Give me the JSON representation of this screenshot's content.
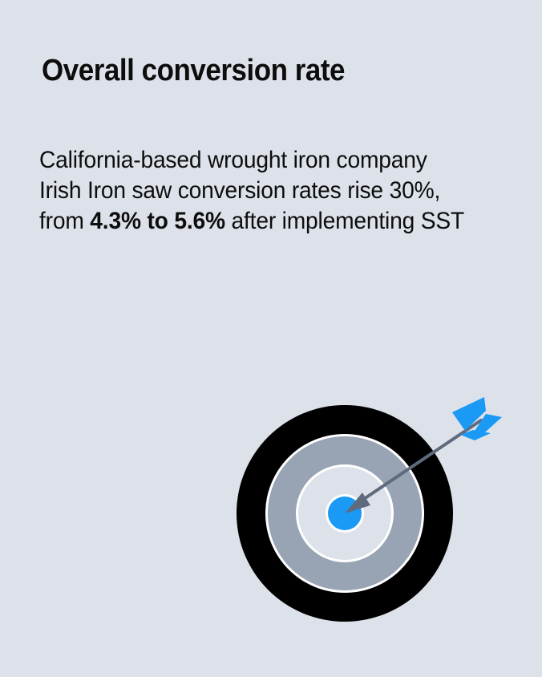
{
  "title": "Overall conversion rate",
  "body": {
    "line1": "California-based wrought iron company",
    "line2": "Irish Iron saw conversion rates rise 30%,",
    "line3_start": "from ",
    "line3_bold": "4.3% to 5.6%",
    "line3_end": " after implementing SST"
  },
  "illustration": {
    "icon": "target-with-arrow-icon",
    "colors": {
      "background": "#dde2ea",
      "outer_ring": "#000000",
      "middle_ring": "#98a4b4",
      "inner_ring": "#dde2ea",
      "bullseye": "#1a9af5",
      "arrow_shaft": "#5f6b7c",
      "arrow_fletching": "#1a9af5"
    }
  }
}
